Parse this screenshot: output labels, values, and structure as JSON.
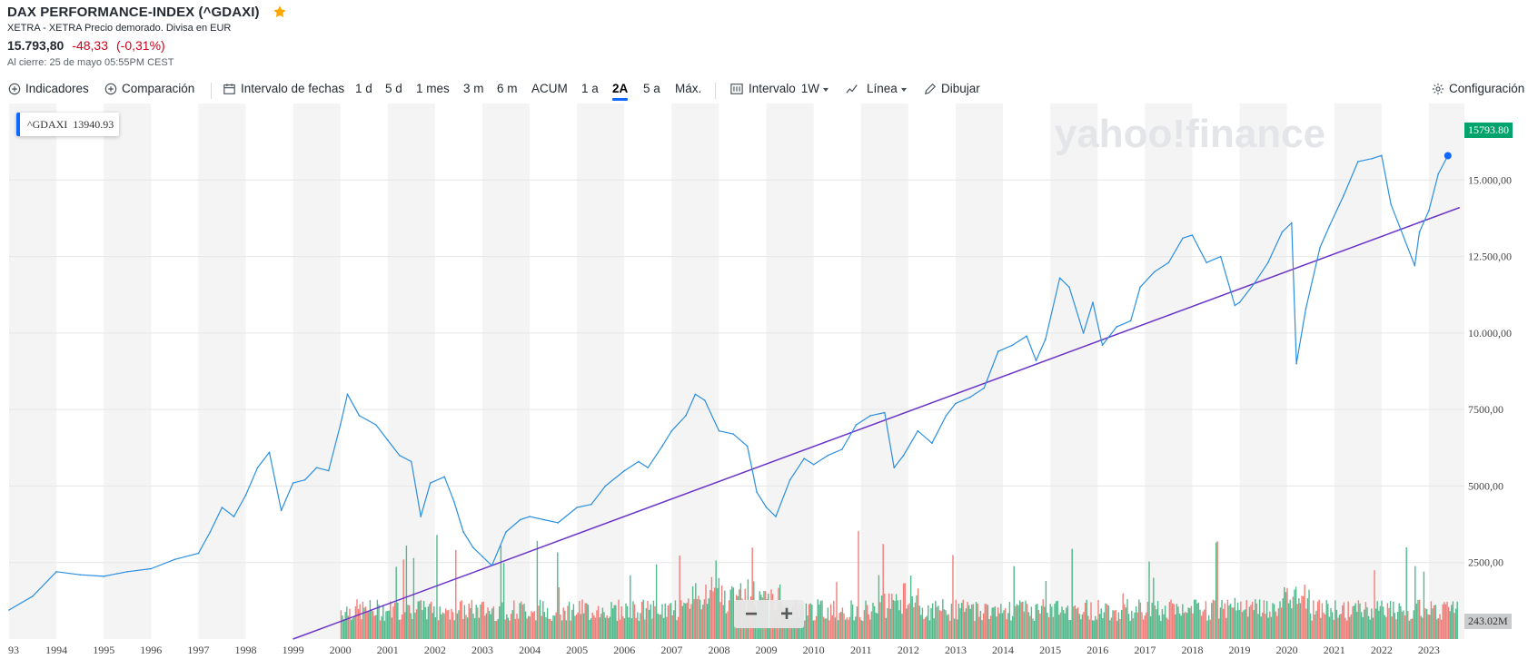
{
  "header": {
    "title": "DAX PERFORMANCE-INDEX (^GDAXI)",
    "subtitle": "XETRA - XETRA Precio demorado. Divisa en EUR",
    "price": "15.793,80",
    "change": "-48,33",
    "change_pct": "(-0,31%)",
    "close_note": "Al cierre: 25 de mayo 05:55PM CEST",
    "star_icon": "star-icon",
    "star_color": "#ffa700"
  },
  "toolbar": {
    "indicators": "Indicadores",
    "comparison": "Comparación",
    "date_range": "Intervalo de fechas",
    "ranges": [
      "1 d",
      "5 d",
      "1 mes",
      "3 m",
      "6 m",
      "ACUM",
      "1 a",
      "2A",
      "5 a",
      "Máx."
    ],
    "active_range": "2A",
    "interval_label": "Intervalo",
    "interval_value": "1W",
    "chart_type": "Línea",
    "draw": "Dibujar",
    "settings": "Configuración"
  },
  "legend": {
    "symbol": "^GDAXI",
    "value": "13940.93"
  },
  "watermark": "yahoo!finance",
  "price_badge": "15793.80",
  "volume_badge": "243.02M",
  "zoom": {
    "minus": "−",
    "plus": "+"
  },
  "colors": {
    "line": "#2b8fe0",
    "trendline": "#6a35c8",
    "volume_up": "#3fb27f",
    "volume_down": "#f0706a",
    "price_badge": "#00a36c",
    "change": "#d0021b"
  },
  "chart_data": {
    "type": "line",
    "series": [
      {
        "name": "^GDAXI",
        "x": [
          1993.0,
          1993.5,
          1994.0,
          1994.5,
          1995.0,
          1995.5,
          1996.0,
          1996.5,
          1997.0,
          1997.25,
          1997.5,
          1997.75,
          1998.0,
          1998.25,
          1998.5,
          1998.75,
          1999.0,
          1999.25,
          1999.5,
          1999.75,
          2000.0,
          2000.15,
          2000.4,
          2000.75,
          2001.0,
          2001.25,
          2001.5,
          2001.7,
          2001.9,
          2002.2,
          2002.4,
          2002.6,
          2002.8,
          2003.0,
          2003.2,
          2003.5,
          2003.8,
          2004.0,
          2004.3,
          2004.6,
          2005.0,
          2005.3,
          2005.6,
          2006.0,
          2006.3,
          2006.5,
          2006.8,
          2007.0,
          2007.3,
          2007.5,
          2007.7,
          2008.0,
          2008.3,
          2008.6,
          2008.8,
          2009.0,
          2009.2,
          2009.5,
          2009.8,
          2010.0,
          2010.3,
          2010.6,
          2010.9,
          2011.2,
          2011.5,
          2011.7,
          2011.9,
          2012.2,
          2012.5,
          2012.8,
          2013.0,
          2013.3,
          2013.6,
          2013.9,
          2014.2,
          2014.5,
          2014.7,
          2014.9,
          2015.2,
          2015.4,
          2015.7,
          2015.9,
          2016.1,
          2016.4,
          2016.7,
          2016.9,
          2017.2,
          2017.5,
          2017.8,
          2018.0,
          2018.3,
          2018.6,
          2018.9,
          2019.0,
          2019.3,
          2019.6,
          2019.9,
          2020.1,
          2020.2,
          2020.4,
          2020.7,
          2020.9,
          2021.2,
          2021.5,
          2021.8,
          2022.0,
          2022.2,
          2022.4,
          2022.7,
          2022.8,
          2023.0,
          2023.2,
          2023.4
        ],
        "values": [
          950,
          1400,
          2200,
          2100,
          2050,
          2200,
          2300,
          2600,
          2800,
          3500,
          4300,
          4000,
          4700,
          5600,
          6100,
          4200,
          5100,
          5200,
          5600,
          5500,
          7000,
          8000,
          7300,
          7000,
          6500,
          6000,
          5800,
          4000,
          5100,
          5300,
          4500,
          3500,
          3000,
          2700,
          2400,
          3500,
          3900,
          4000,
          3900,
          3800,
          4300,
          4400,
          5000,
          5500,
          5800,
          5600,
          6300,
          6800,
          7300,
          8000,
          7800,
          6800,
          6700,
          6300,
          4800,
          4300,
          4000,
          5200,
          5900,
          5700,
          6000,
          6200,
          7000,
          7300,
          7400,
          5600,
          6000,
          6800,
          6400,
          7300,
          7700,
          7900,
          8200,
          9400,
          9600,
          9900,
          9100,
          9800,
          11800,
          11500,
          10000,
          11000,
          9600,
          10200,
          10400,
          11500,
          12000,
          12300,
          13100,
          13200,
          12300,
          12500,
          10900,
          11000,
          11600,
          12300,
          13300,
          13600,
          9000,
          10800,
          12800,
          13500,
          14500,
          15600,
          15700,
          15800,
          14200,
          13400,
          12200,
          13300,
          14000,
          15200,
          15793.8
        ]
      }
    ],
    "trendline": {
      "x": [
        1999.0,
        2023.65
      ],
      "y": [
        0,
        14100
      ]
    },
    "volume": {
      "last": "243.02M"
    },
    "xlim": [
      1993.0,
      2023.75
    ],
    "ylim": [
      0,
      17500
    ],
    "x_ticks": [
      "93",
      "1994",
      "1995",
      "1996",
      "1997",
      "1998",
      "1999",
      "2000",
      "2001",
      "2002",
      "2003",
      "2004",
      "2005",
      "2006",
      "2007",
      "2008",
      "2009",
      "2010",
      "2011",
      "2012",
      "2013",
      "2014",
      "2015",
      "2016",
      "2017",
      "2018",
      "2019",
      "2020",
      "2021",
      "2022",
      "2023"
    ],
    "y_ticks": [
      "2500,00",
      "5000,00",
      "7500,00",
      "10.000,00",
      "12.500,00",
      "15.000,00"
    ],
    "grid": true,
    "legend_position": "top-left"
  }
}
